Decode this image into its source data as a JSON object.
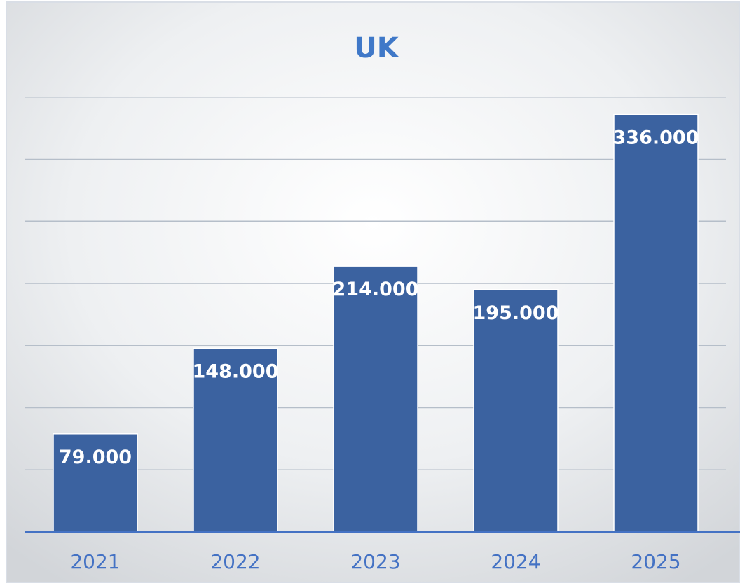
{
  "chart_data": {
    "type": "bar",
    "title": "UK",
    "xlabel": "",
    "ylabel": "",
    "categories": [
      "2021",
      "2022",
      "2023",
      "2024",
      "2025"
    ],
    "values": [
      79000,
      148000,
      214000,
      195000,
      336000
    ],
    "data_labels": [
      "79.000",
      "148.000",
      "214.000",
      "195.000",
      "336.000"
    ],
    "ylim": [
      0,
      400000
    ],
    "y_gridline_step": 50000,
    "grid": true,
    "legend": "none",
    "colors": {
      "bar": "#3B62A0",
      "title": "#3F78C8",
      "tick_label": "#4472C4",
      "axis": "#4472C4",
      "gridline": "#B5BEC9",
      "background_light": "#FFFFFF",
      "background_dark": "#D4D7DB"
    }
  }
}
